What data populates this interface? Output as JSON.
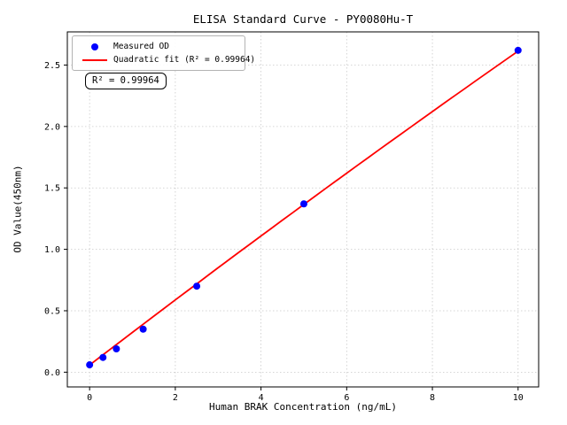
{
  "chart_data": {
    "type": "scatter",
    "title": "ELISA Standard Curve - PY0080Hu-T",
    "xlabel": "Human BRAK Concentration (ng/mL)",
    "ylabel": "OD Value(450nm)",
    "x_ticks": [
      "0",
      "2",
      "4",
      "6",
      "8",
      "10"
    ],
    "x_tick_values": [
      0,
      2,
      4,
      6,
      8,
      10
    ],
    "y_ticks": [
      "0.0",
      "0.5",
      "1.0",
      "1.5",
      "2.0",
      "2.5"
    ],
    "y_tick_values": [
      0,
      0.5,
      1.0,
      1.5,
      2.0,
      2.5
    ],
    "xlim": [
      -0.52,
      10.48
    ],
    "ylim": [
      -0.12,
      2.77
    ],
    "grid": {
      "visible": true,
      "style": "dotted",
      "color": "#c9c9c9"
    },
    "axes_color": "#000000",
    "legend_position": "upper-left",
    "series": [
      {
        "name": "Measured OD",
        "type": "scatter",
        "color": "#0000ff",
        "marker": "circle",
        "x": [
          0,
          0.312,
          0.625,
          1.25,
          2.5,
          5,
          10
        ],
        "y": [
          0.06,
          0.12,
          0.19,
          0.35,
          0.7,
          1.37,
          2.62
        ]
      },
      {
        "name": "Quadratic fit (R² = 0.99964)",
        "type": "line",
        "color": "#ff0000",
        "fit": {
          "kind": "quadratic",
          "a": -0.0012,
          "b": 0.2675,
          "c": 0.058,
          "x_min": 0,
          "x_max": 10,
          "r_squared": 0.99964
        }
      }
    ],
    "annotation": {
      "text": "R² = 0.99964",
      "border_color": "#000000"
    }
  }
}
